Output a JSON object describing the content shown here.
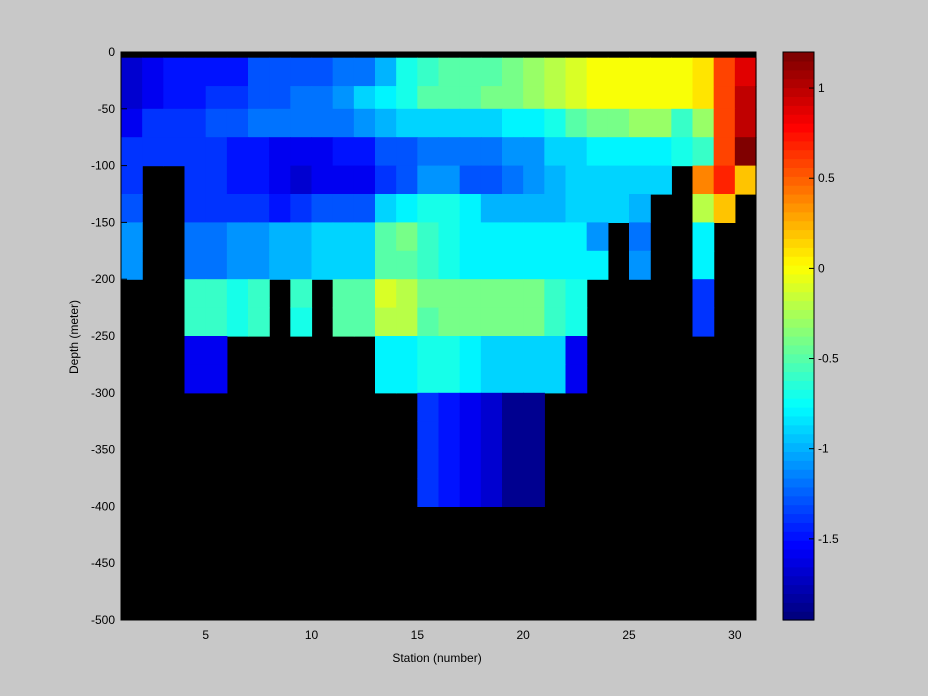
{
  "chart_data": {
    "type": "heatmap",
    "title": "",
    "xlabel": "Station (number)",
    "ylabel": "Depth (meter)",
    "xlim": [
      1,
      31
    ],
    "ylim": [
      -500,
      0
    ],
    "x_ticks": [
      5,
      10,
      15,
      20,
      25,
      30
    ],
    "y_ticks": [
      0,
      -50,
      -100,
      -150,
      -200,
      -250,
      -300,
      -350,
      -400,
      -450,
      -500
    ],
    "colorbar": {
      "colormap": "jet",
      "range": [
        -1.95,
        1.2
      ],
      "ticks": [
        1,
        0.5,
        0,
        -0.5,
        -1,
        -1.5
      ],
      "levels": 64
    },
    "grid": false,
    "masked_color": "#000000",
    "bin_edges": [
      -5,
      -30,
      -50,
      -75,
      -100,
      -125,
      -150,
      -175,
      -200,
      -225,
      -250,
      -275,
      -300,
      -325,
      -350,
      -375,
      -400
    ],
    "stations": [
      1,
      2,
      3,
      4,
      5,
      6,
      7,
      8,
      9,
      10,
      11,
      12,
      13,
      14,
      15,
      16,
      17,
      18,
      19,
      20,
      21,
      22,
      23,
      24,
      25,
      26,
      27,
      28,
      29,
      30
    ],
    "values_by_depth_bin": [
      [
        -1.7,
        -1.6,
        -1.5,
        -1.5,
        -1.5,
        -1.5,
        -1.3,
        -1.3,
        -1.3,
        -1.3,
        -1.2,
        -1.2,
        -1.0,
        -0.7,
        -0.6,
        -0.5,
        -0.5,
        -0.5,
        -0.4,
        -0.3,
        -0.2,
        -0.1,
        0.0,
        0.0,
        0.0,
        0.0,
        0.0,
        0.1,
        0.6,
        0.9
      ],
      [
        -1.7,
        -1.6,
        -1.5,
        -1.5,
        -1.4,
        -1.4,
        -1.3,
        -1.3,
        -1.2,
        -1.2,
        -1.1,
        -0.9,
        -0.8,
        -0.7,
        -0.5,
        -0.5,
        -0.5,
        -0.4,
        -0.4,
        -0.3,
        -0.2,
        -0.1,
        0.0,
        0.0,
        0.0,
        0.0,
        0.0,
        0.1,
        0.6,
        1.0
      ],
      [
        -1.6,
        -1.4,
        -1.4,
        -1.4,
        -1.3,
        -1.3,
        -1.2,
        -1.2,
        -1.2,
        -1.2,
        -1.2,
        -1.1,
        -1.0,
        -0.9,
        -0.9,
        -0.9,
        -0.9,
        -0.9,
        -0.8,
        -0.8,
        -0.7,
        -0.5,
        -0.4,
        -0.4,
        -0.3,
        -0.3,
        -0.6,
        -0.3,
        0.6,
        1.0
      ],
      [
        -1.4,
        -1.4,
        -1.4,
        -1.4,
        -1.4,
        -1.5,
        -1.5,
        -1.6,
        -1.6,
        -1.6,
        -1.5,
        -1.5,
        -1.3,
        -1.3,
        -1.2,
        -1.2,
        -1.2,
        -1.2,
        -1.1,
        -1.1,
        -0.9,
        -0.9,
        -0.8,
        -0.8,
        -0.8,
        -0.8,
        -0.7,
        -0.6,
        0.6,
        1.2
      ],
      [
        -1.4,
        null,
        null,
        -1.4,
        -1.4,
        -1.5,
        -1.5,
        -1.6,
        -1.7,
        -1.6,
        -1.6,
        -1.6,
        -1.4,
        -1.3,
        -1.1,
        -1.1,
        -1.3,
        -1.3,
        -1.2,
        -1.1,
        -1.0,
        -0.9,
        -0.9,
        -0.9,
        -0.9,
        -0.9,
        null,
        0.4,
        0.7,
        0.2
      ],
      [
        -1.3,
        null,
        null,
        -1.4,
        -1.4,
        -1.4,
        -1.4,
        -1.5,
        -1.4,
        -1.3,
        -1.3,
        -1.3,
        -0.9,
        -0.8,
        -0.7,
        -0.7,
        -0.8,
        -1.0,
        -1.0,
        -1.0,
        -1.0,
        -0.9,
        -0.9,
        -0.9,
        -1.0,
        null,
        null,
        -0.2,
        0.2,
        null
      ],
      [
        -1.1,
        null,
        null,
        -1.2,
        -1.2,
        -1.1,
        -1.1,
        -1.0,
        -1.0,
        -0.9,
        -0.9,
        -0.9,
        -0.5,
        -0.4,
        -0.6,
        -0.7,
        -0.8,
        -0.8,
        -0.8,
        -0.8,
        -0.8,
        -0.8,
        -1.1,
        null,
        -1.2,
        null,
        null,
        -0.8,
        null,
        null
      ],
      [
        -1.1,
        null,
        null,
        -1.2,
        -1.2,
        -1.1,
        -1.1,
        -1.0,
        -1.0,
        -0.9,
        -0.9,
        -0.9,
        -0.5,
        -0.5,
        -0.6,
        -0.7,
        -0.8,
        -0.8,
        -0.8,
        -0.8,
        -0.8,
        -0.8,
        -0.8,
        null,
        -1.1,
        null,
        null,
        -0.8,
        null,
        null
      ],
      [
        null,
        null,
        null,
        -0.6,
        -0.6,
        -0.7,
        -0.6,
        null,
        -0.6,
        null,
        -0.5,
        -0.5,
        -0.1,
        -0.2,
        -0.4,
        -0.4,
        -0.4,
        -0.4,
        -0.4,
        -0.4,
        -0.6,
        -0.7,
        null,
        null,
        null,
        null,
        null,
        -1.4,
        null,
        null
      ],
      [
        null,
        null,
        null,
        -0.6,
        -0.6,
        -0.7,
        -0.6,
        null,
        -0.7,
        null,
        -0.5,
        -0.5,
        -0.2,
        -0.2,
        -0.5,
        -0.4,
        -0.4,
        -0.4,
        -0.4,
        -0.4,
        -0.6,
        -0.7,
        null,
        null,
        null,
        null,
        null,
        -1.4,
        null,
        null
      ],
      [
        null,
        null,
        null,
        -1.6,
        -1.6,
        null,
        null,
        null,
        null,
        null,
        null,
        null,
        -0.8,
        -0.8,
        -0.7,
        -0.7,
        -0.8,
        -0.9,
        -0.9,
        -0.9,
        -0.9,
        -1.6,
        null,
        null,
        null,
        null,
        null,
        null,
        null,
        null
      ],
      [
        null,
        null,
        null,
        -1.6,
        -1.6,
        null,
        null,
        null,
        null,
        null,
        null,
        null,
        -0.8,
        -0.8,
        -0.7,
        -0.7,
        -0.8,
        -0.9,
        -0.9,
        -0.9,
        -0.9,
        -1.6,
        null,
        null,
        null,
        null,
        null,
        null,
        null,
        null
      ],
      [
        null,
        null,
        null,
        null,
        null,
        null,
        null,
        null,
        null,
        null,
        null,
        null,
        null,
        null,
        -1.4,
        -1.5,
        -1.6,
        -1.7,
        -1.9,
        -1.9,
        null,
        null,
        null,
        null,
        null,
        null,
        null,
        null,
        null,
        null
      ],
      [
        null,
        null,
        null,
        null,
        null,
        null,
        null,
        null,
        null,
        null,
        null,
        null,
        null,
        null,
        -1.4,
        -1.5,
        -1.6,
        -1.7,
        -1.9,
        -1.9,
        null,
        null,
        null,
        null,
        null,
        null,
        null,
        null,
        null,
        null
      ],
      [
        null,
        null,
        null,
        null,
        null,
        null,
        null,
        null,
        null,
        null,
        null,
        null,
        null,
        null,
        -1.4,
        -1.5,
        -1.6,
        -1.7,
        -1.9,
        -1.9,
        null,
        null,
        null,
        null,
        null,
        null,
        null,
        null,
        null,
        null
      ],
      [
        null,
        null,
        null,
        null,
        null,
        null,
        null,
        null,
        null,
        null,
        null,
        null,
        null,
        null,
        -1.4,
        -1.5,
        -1.6,
        -1.7,
        -1.9,
        -1.9,
        null,
        null,
        null,
        null,
        null,
        null,
        null,
        null,
        null,
        null
      ]
    ]
  }
}
